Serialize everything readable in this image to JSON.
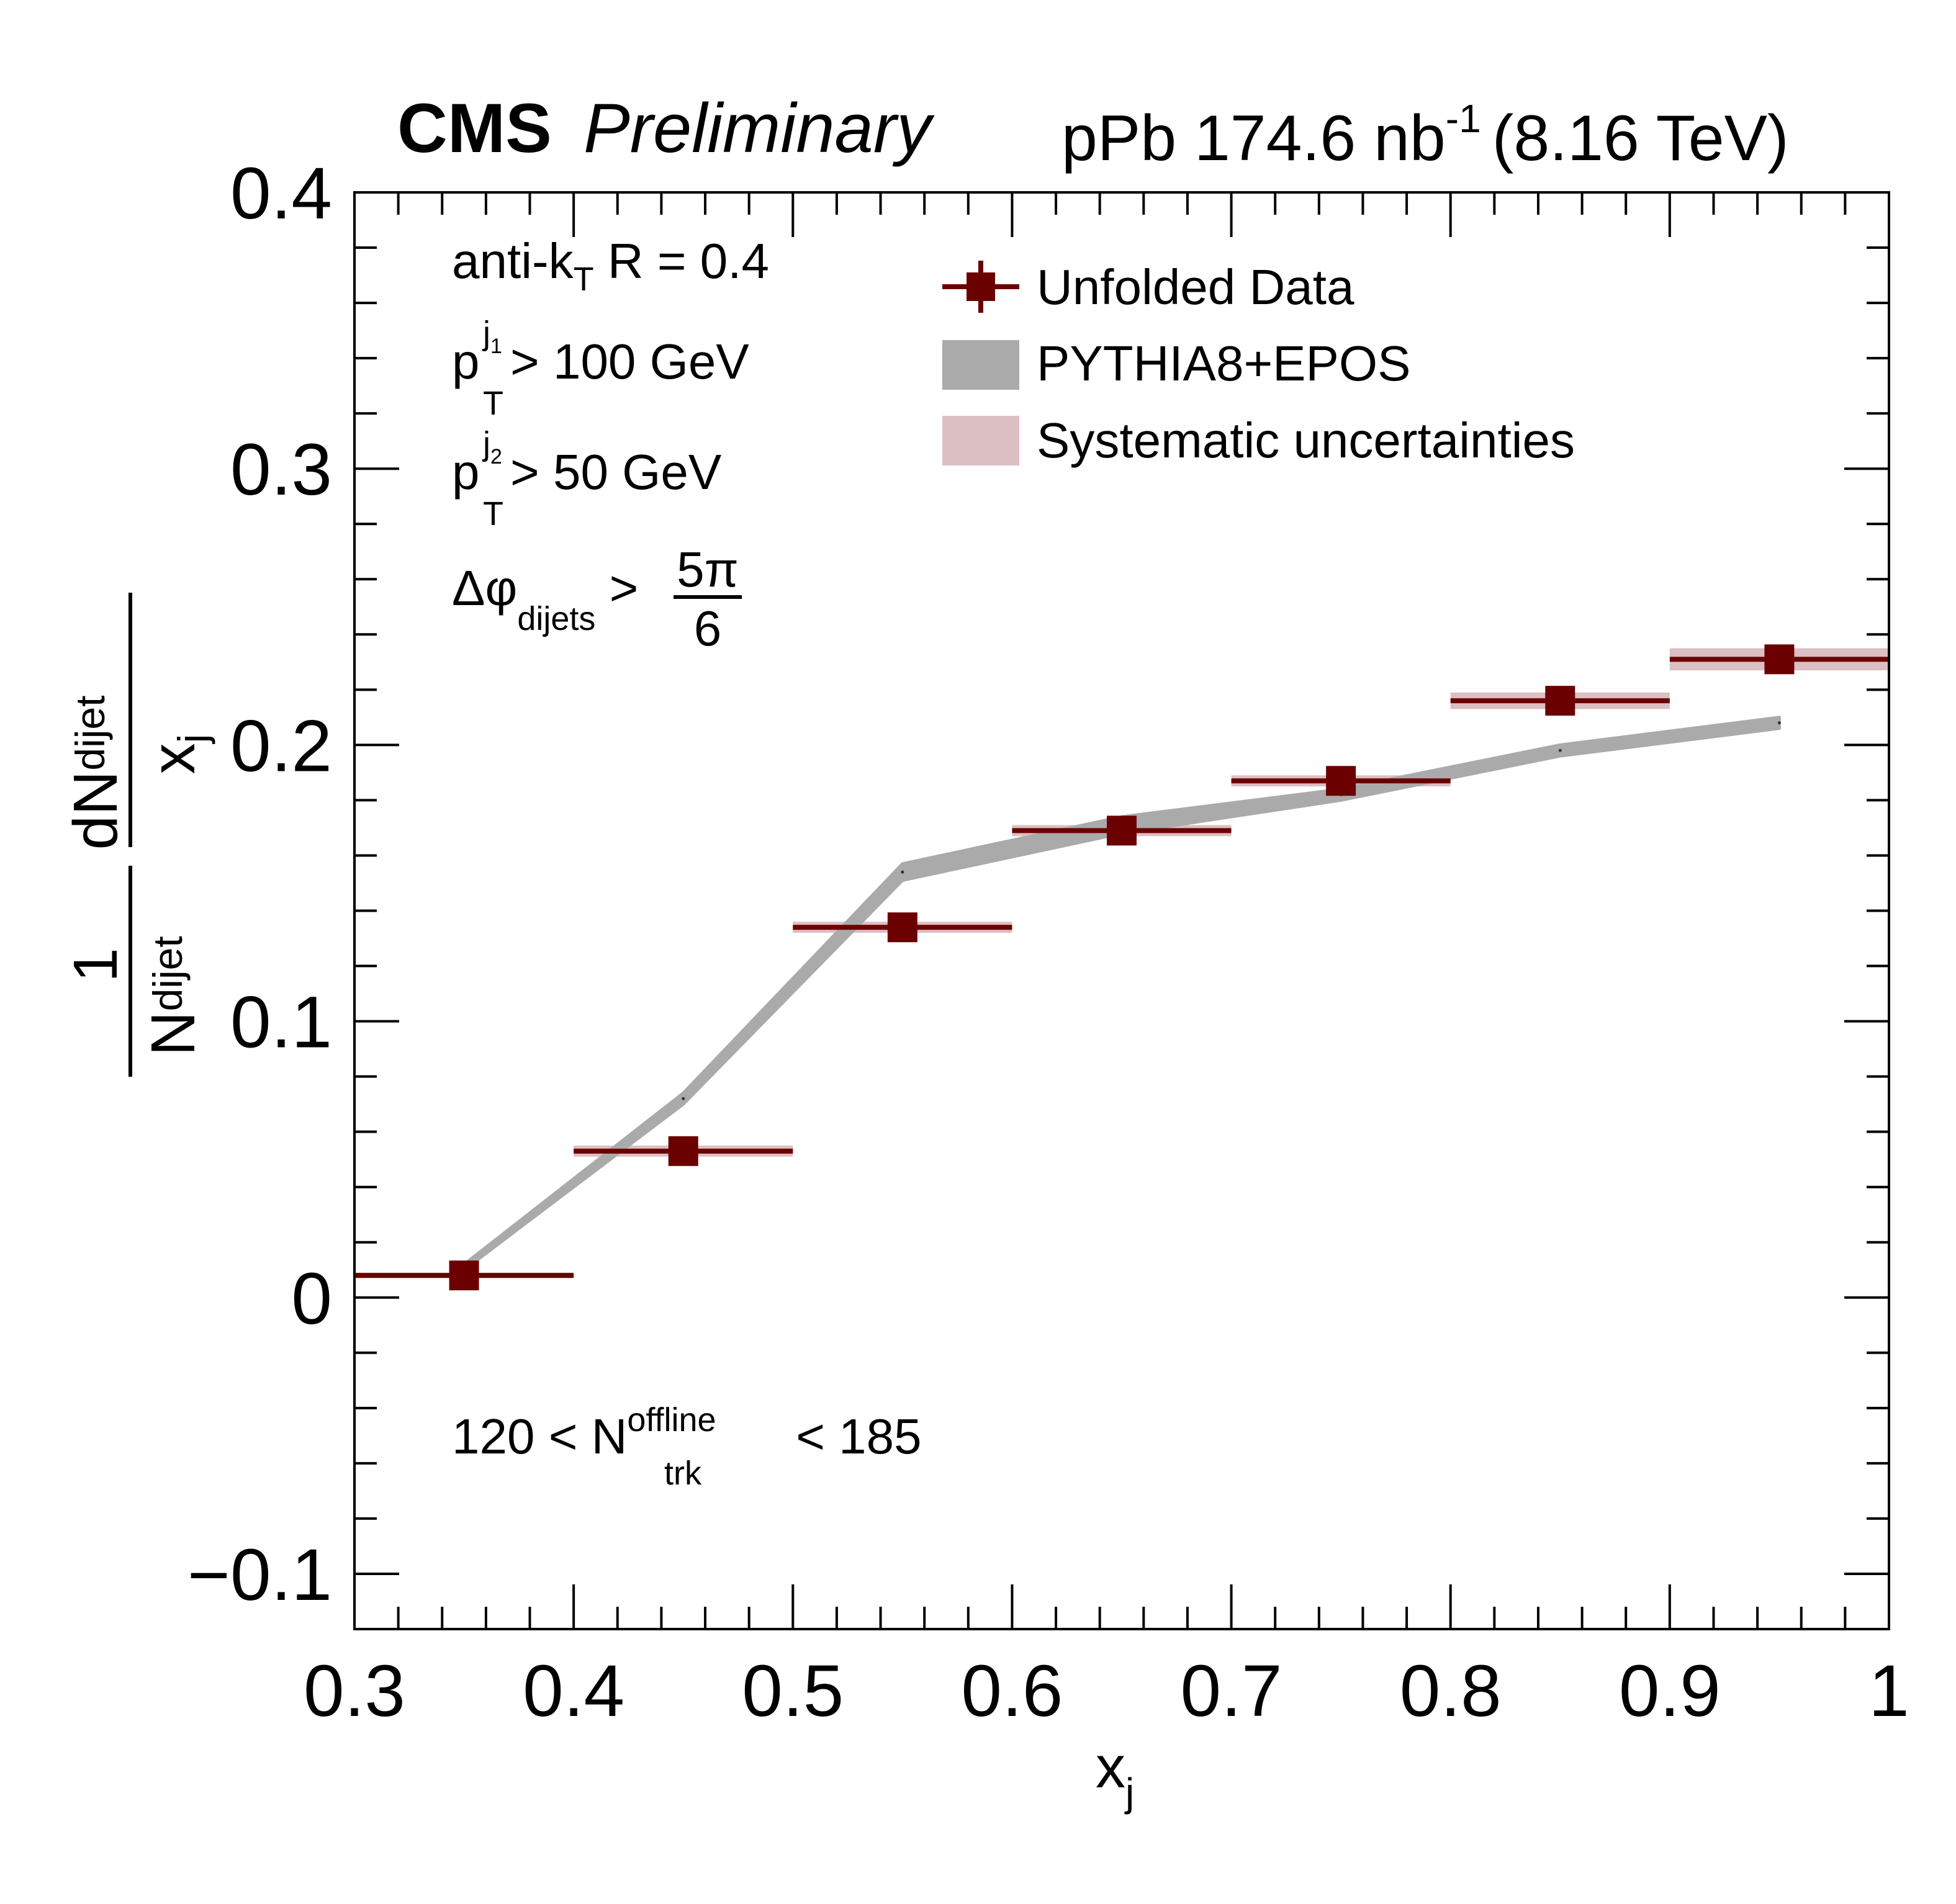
{
  "header": {
    "experiment": "CMS",
    "status": "Preliminary",
    "lumi_prefix": "pPb 174.6 nb",
    "lumi_exponent": "-1",
    "energy": "(8.16 TeV)"
  },
  "annotations": {
    "jet_algo_prefix": "anti-k",
    "jet_algo_sub": "T",
    "jet_algo_suffix": " R = 0.4",
    "pt_symbol": "p",
    "pt_sub": "T",
    "pt_sup_j": "j",
    "pt1_index": "1",
    "pt1_cut": " > 100 GeV",
    "pt2_index": "2",
    "pt2_cut": " > 50 GeV",
    "dphi_symbol": "Δφ",
    "dphi_sub": "dijets",
    "dphi_op": " >",
    "dphi_num": "5π",
    "dphi_den": "6",
    "ntrk_prefix": "120 < N",
    "ntrk_sup": "offline",
    "ntrk_sub": "trk",
    "ntrk_suffix": " < 185"
  },
  "axis_labels": {
    "x_main": "x",
    "x_sub": "j",
    "y_one": "1",
    "y_N": "N",
    "y_N_sub": "dijet",
    "y_dN": "dN",
    "y_dN_sub": "dijet",
    "y_x": "x",
    "y_x_sub": "j"
  },
  "legend": {
    "data": "Unfolded Data",
    "model": "PYTHIA8+EPOS",
    "syst": "Systematic uncertainties"
  },
  "colors": {
    "data": "#6b0000",
    "model": "#aaaaaa",
    "syst": "#dbbfc2"
  },
  "chart_data": {
    "type": "scatter",
    "xlim": [
      0.3,
      1.0
    ],
    "ylim": [
      -0.12,
      0.4
    ],
    "x_ticks": [
      0.3,
      0.4,
      0.5,
      0.6,
      0.7,
      0.8,
      0.9,
      1.0
    ],
    "x_tick_labels": [
      "0.3",
      "0.4",
      "0.5",
      "0.6",
      "0.7",
      "0.8",
      "0.9",
      "1"
    ],
    "y_ticks": [
      -0.1,
      0.0,
      0.1,
      0.2,
      0.3,
      0.4
    ],
    "y_tick_labels": [
      "−0.1",
      "0",
      "0.1",
      "0.2",
      "0.3",
      "0.4"
    ],
    "series": [
      {
        "name": "Unfolded Data",
        "x": [
          0.35,
          0.45,
          0.55,
          0.65,
          0.75,
          0.85,
          0.95
        ],
        "x_low": [
          0.3,
          0.4,
          0.5,
          0.6,
          0.7,
          0.8,
          0.9
        ],
        "x_high": [
          0.4,
          0.5,
          0.6,
          0.7,
          0.8,
          0.9,
          1.0
        ],
        "y": [
          0.008,
          0.053,
          0.134,
          0.169,
          0.187,
          0.216,
          0.231
        ],
        "syst": [
          0.001,
          0.002,
          0.002,
          0.002,
          0.002,
          0.003,
          0.004
        ]
      },
      {
        "name": "PYTHIA8+EPOS",
        "x": [
          0.35,
          0.45,
          0.55,
          0.65,
          0.75,
          0.85,
          0.95
        ],
        "y": [
          0.011,
          0.072,
          0.154,
          0.171,
          0.182,
          0.198,
          0.208
        ],
        "half_width": [
          0.001,
          0.002,
          0.003,
          0.003,
          0.002,
          0.002,
          0.002
        ]
      }
    ]
  }
}
